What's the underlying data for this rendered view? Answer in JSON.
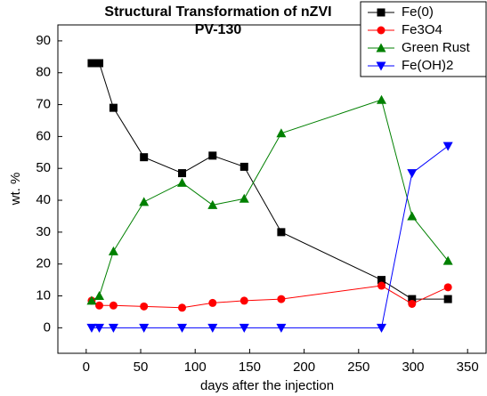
{
  "chart_data": {
    "type": "line",
    "title": "Structural Transformation of nZVI",
    "subtitle": "PV-130",
    "x_label": "days after the injection",
    "y_label": "wt. %",
    "x": [
      5,
      12,
      25,
      53,
      88,
      116,
      145,
      179,
      271,
      299,
      332
    ],
    "series": [
      {
        "name": "Fe(0)",
        "color": "#000000",
        "marker": "square",
        "values": [
          83,
          83,
          69,
          53.5,
          48.5,
          54,
          50.5,
          30,
          15,
          9,
          9
        ]
      },
      {
        "name": "Fe3O4",
        "color": "#ff0000",
        "marker": "circle",
        "values": [
          8.5,
          7,
          7,
          6.7,
          6.3,
          7.8,
          8.5,
          9,
          13.2,
          7.5,
          12.7
        ]
      },
      {
        "name": "Green Rust",
        "color": "#008000",
        "marker": "triangle-up",
        "values": [
          8.5,
          10,
          24,
          39.5,
          45.5,
          38.5,
          40.5,
          61,
          71.5,
          35,
          21
        ]
      },
      {
        "name": "Fe(OH)2",
        "color": "#0000ff",
        "marker": "triangle-down",
        "values": [
          0,
          0,
          0,
          0,
          0,
          0,
          0,
          0,
          0,
          48.5,
          57
        ]
      }
    ],
    "xlim": [
      -26,
      367
    ],
    "ylim": [
      -8,
      95
    ],
    "xticks": [
      0,
      50,
      100,
      150,
      200,
      250,
      300,
      350
    ],
    "yticks": [
      0,
      10,
      20,
      30,
      40,
      50,
      60,
      70,
      80,
      90
    ],
    "legend": "top-right"
  }
}
